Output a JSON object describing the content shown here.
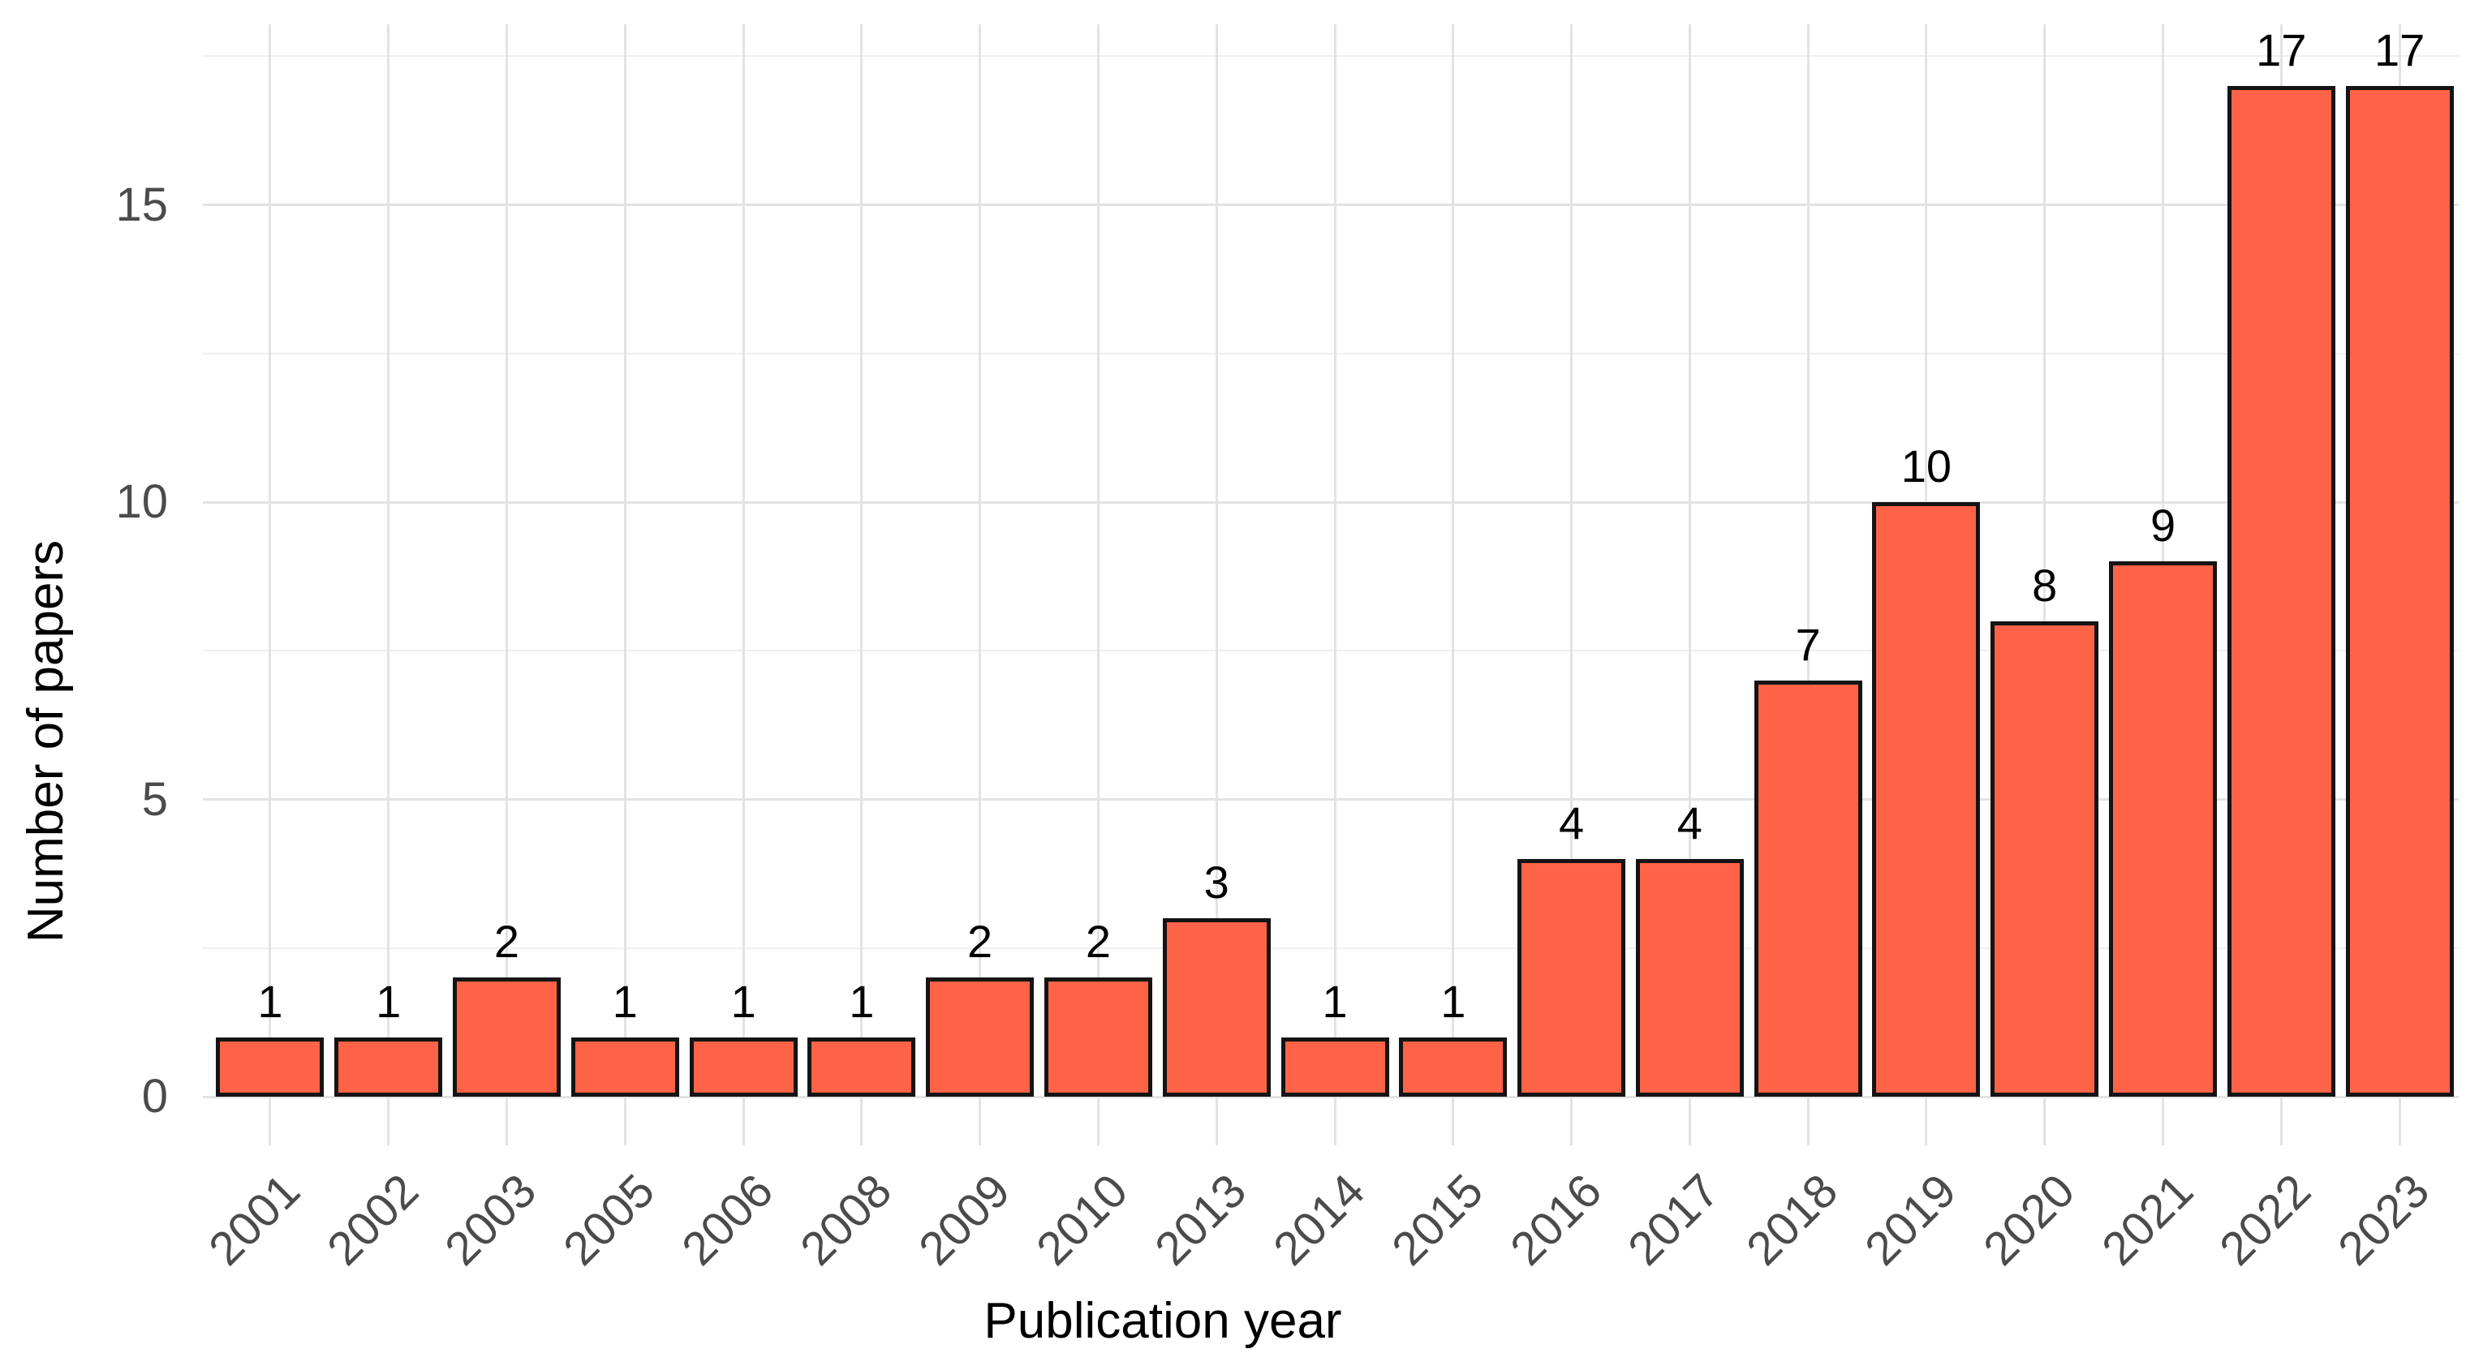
{
  "figure": {
    "background": "#FFFFFF"
  },
  "chart_data": {
    "type": "bar",
    "title": "",
    "xlabel": "Publication year",
    "ylabel": "Number of papers",
    "categories": [
      "2001",
      "2002",
      "2003",
      "2005",
      "2006",
      "2008",
      "2009",
      "2010",
      "2013",
      "2014",
      "2015",
      "2016",
      "2017",
      "2018",
      "2019",
      "2020",
      "2021",
      "2022",
      "2023"
    ],
    "values": [
      1,
      1,
      2,
      1,
      1,
      1,
      2,
      2,
      3,
      1,
      1,
      4,
      4,
      7,
      10,
      8,
      9,
      17,
      17
    ],
    "bar_value_labels": [
      "1",
      "1",
      "2",
      "1",
      "1",
      "1",
      "2",
      "2",
      "3",
      "1",
      "1",
      "4",
      "4",
      "7",
      "10",
      "8",
      "9",
      "17",
      "17"
    ],
    "ylim": [
      0,
      17.85
    ],
    "yticks": [
      0,
      5,
      10,
      15
    ],
    "ytick_labels": [
      "0",
      "5",
      "10",
      "15"
    ],
    "yticks_minor": [
      2.5,
      7.5,
      12.5,
      17.5
    ],
    "grid": "major-and-minor-horizontal, major-vertical-per-category",
    "legend_position": "none",
    "x_tick_angle_deg": 45,
    "colors": {
      "bar_fill": "#FF6347",
      "bar_border": "#141414",
      "grid_major": "#E3E3E3",
      "grid_minor": "#EFEFEF",
      "tick_label": "#4B4B4B",
      "axis_title": "#000000",
      "value_label": "#000000",
      "background": "#FFFFFF"
    }
  }
}
